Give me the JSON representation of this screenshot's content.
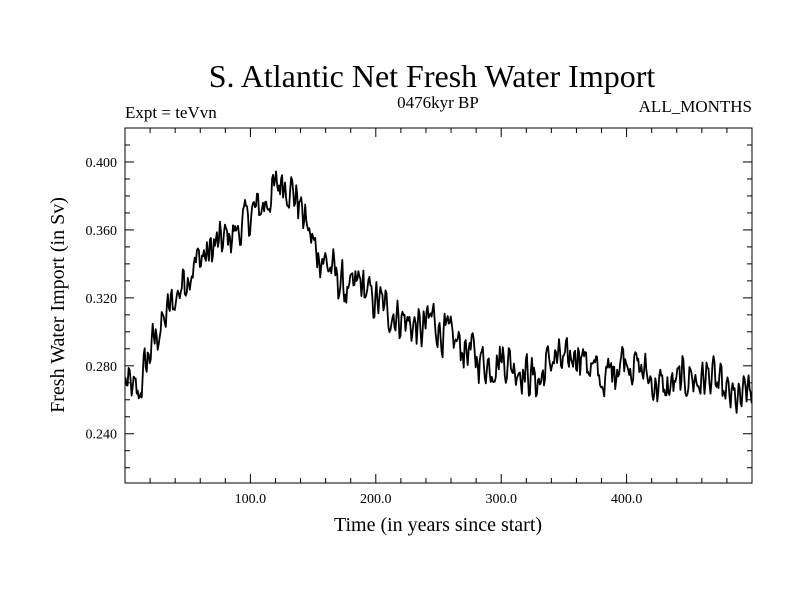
{
  "chart_data": {
    "type": "line",
    "title": "S. Atlantic Net Fresh Water Import",
    "subtitle_left": "Expt = teVvn",
    "subtitle_center": "0476kyr BP",
    "subtitle_right": "ALL_MONTHS",
    "xlabel": "Time (in years since start)",
    "ylabel": "Fresh Water Import (in Sv)",
    "xlim": [
      0,
      500
    ],
    "ylim": [
      0.211,
      0.42
    ],
    "x_ticks": [
      100,
      200,
      300,
      400
    ],
    "x_tick_labels": [
      "100.0",
      "200.0",
      "300.0",
      "400.0"
    ],
    "y_ticks": [
      0.24,
      0.28,
      0.32,
      0.36,
      0.4
    ],
    "y_tick_labels": [
      "0.240",
      "0.280",
      "0.320",
      "0.360",
      "0.400"
    ],
    "line_color": "#000000",
    "series": [
      {
        "x_start": 1,
        "x_step": 5,
        "values": [
          0.27,
          0.265,
          0.262,
          0.28,
          0.29,
          0.3,
          0.305,
          0.315,
          0.32,
          0.33,
          0.335,
          0.34,
          0.345,
          0.345,
          0.35,
          0.352,
          0.355,
          0.358,
          0.36,
          0.365,
          0.37,
          0.372,
          0.375,
          0.38,
          0.385,
          0.39,
          0.385,
          0.38,
          0.372,
          0.36,
          0.35,
          0.345,
          0.34,
          0.335,
          0.33,
          0.325,
          0.322,
          0.33,
          0.325,
          0.32,
          0.318,
          0.315,
          0.312,
          0.31,
          0.308,
          0.305,
          0.303,
          0.3,
          0.305,
          0.31,
          0.3,
          0.298,
          0.295,
          0.293,
          0.29,
          0.288,
          0.285,
          0.283,
          0.28,
          0.283,
          0.285,
          0.282,
          0.28,
          0.278,
          0.275,
          0.273,
          0.27,
          0.28,
          0.285,
          0.283,
          0.28,
          0.285,
          0.29,
          0.285,
          0.28,
          0.275,
          0.27,
          0.275,
          0.28,
          0.285,
          0.285,
          0.28,
          0.278,
          0.275,
          0.27,
          0.268,
          0.265,
          0.268,
          0.27,
          0.272,
          0.275,
          0.27,
          0.272,
          0.275,
          0.27,
          0.265,
          0.262,
          0.26,
          0.258,
          0.265
        ]
      }
    ]
  }
}
